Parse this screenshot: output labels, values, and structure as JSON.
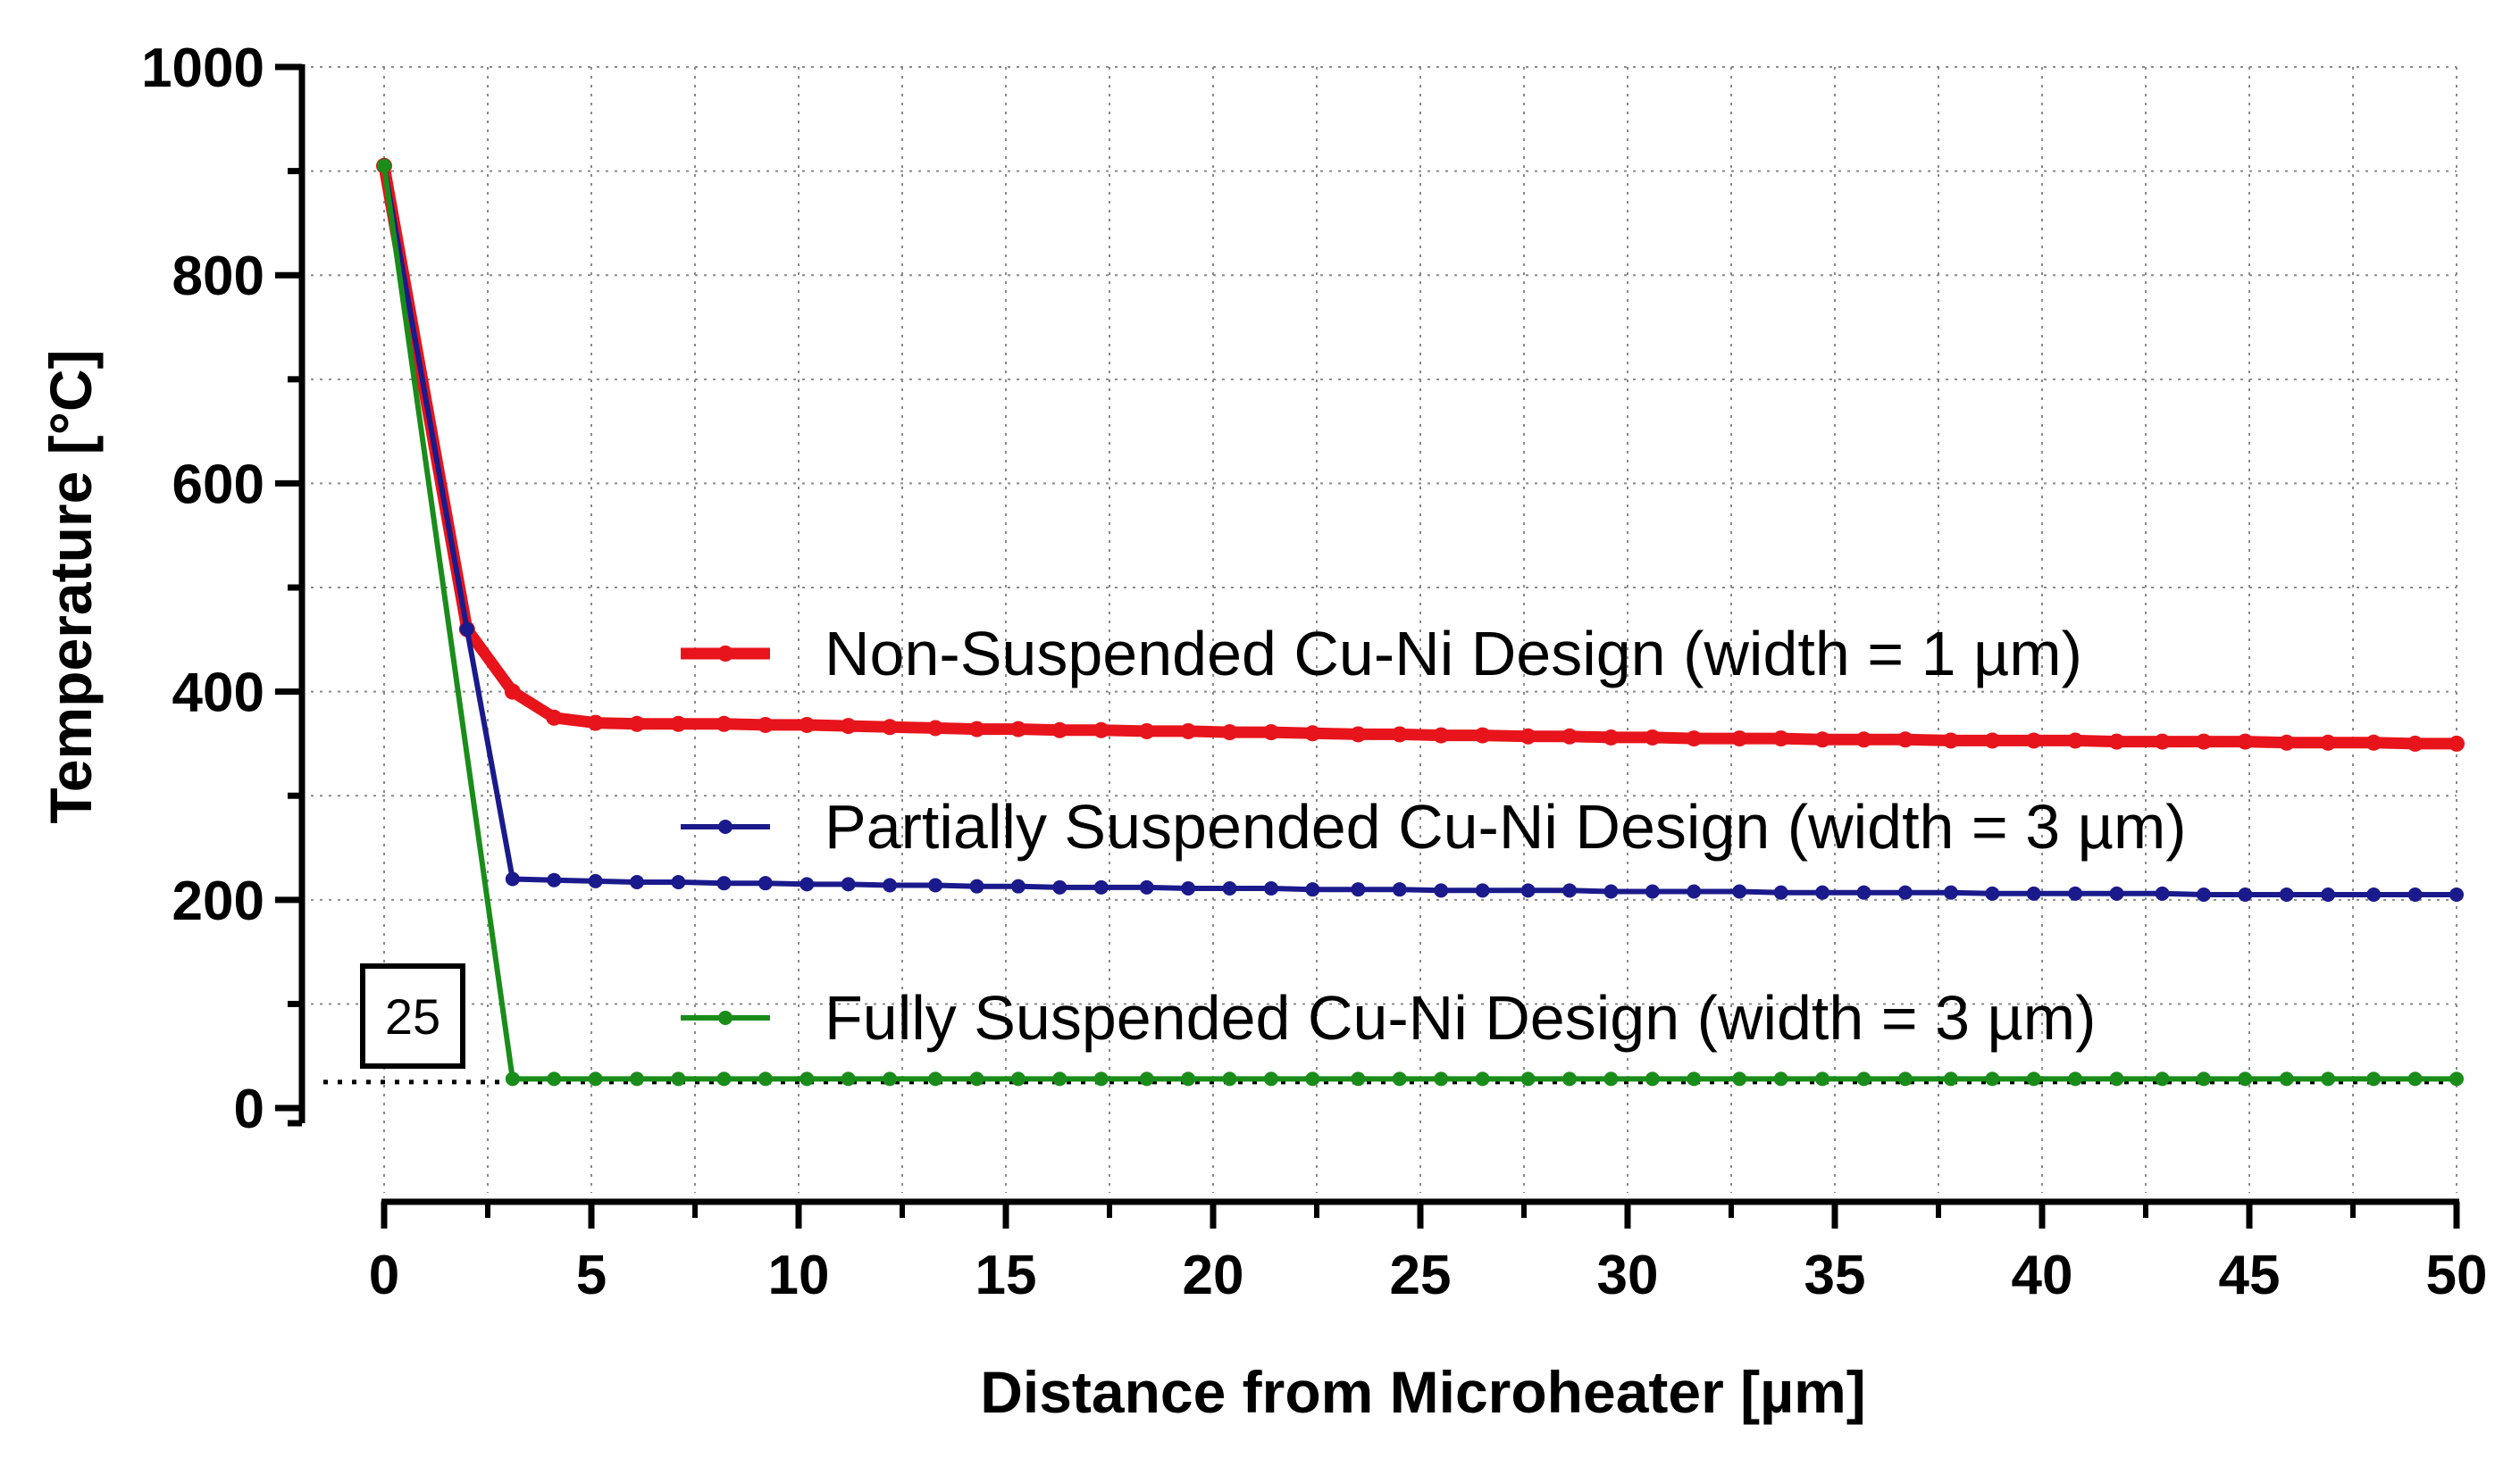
{
  "chart_data": {
    "type": "line",
    "xlabel": "Distance from Microheater [µm]",
    "ylabel": "Temperature [°C]",
    "xlim": [
      0,
      50
    ],
    "ylim": [
      -90,
      1000
    ],
    "xticks": [
      0,
      5,
      10,
      15,
      20,
      25,
      30,
      35,
      40,
      45,
      50
    ],
    "yticks": [
      0,
      200,
      400,
      600,
      800,
      1000
    ],
    "grid": true,
    "legend_position": "center-right",
    "reference_line": {
      "y": 25,
      "label": "25",
      "style": "dotted"
    },
    "series": [
      {
        "name": "Non-Suspended Cu-Ni Design (width = 1 µm)",
        "color": "#e8141b",
        "x": [
          0,
          2,
          3.1,
          4.1,
          5.1,
          6.1,
          7.1,
          8.2,
          9.2,
          10.2,
          11.2,
          12.2,
          13.3,
          14.3,
          15.3,
          16.3,
          17.3,
          18.4,
          19.4,
          20.4,
          21.4,
          22.4,
          23.5,
          24.5,
          25.5,
          26.5,
          27.6,
          28.6,
          29.6,
          30.6,
          31.6,
          32.7,
          33.7,
          34.7,
          35.7,
          36.7,
          37.8,
          38.8,
          39.8,
          40.8,
          41.8,
          42.9,
          43.9,
          44.9,
          45.9,
          46.9,
          48,
          49,
          50
        ],
        "y": [
          905,
          460,
          400,
          375,
          370,
          369,
          369,
          369,
          368,
          368,
          367,
          366,
          365,
          364,
          364,
          363,
          363,
          362,
          362,
          361,
          361,
          360,
          359,
          359,
          358,
          358,
          357,
          357,
          356,
          356,
          355,
          355,
          355,
          354,
          354,
          354,
          353,
          353,
          353,
          353,
          352,
          352,
          352,
          352,
          351,
          351,
          351,
          350,
          350
        ]
      },
      {
        "name": "Partially Suspended Cu-Ni Design (width = 3 µm)",
        "color": "#1a1a8c",
        "x": [
          0,
          2,
          3.1,
          4.1,
          5.1,
          6.1,
          7.1,
          8.2,
          9.2,
          10.2,
          11.2,
          12.2,
          13.3,
          14.3,
          15.3,
          16.3,
          17.3,
          18.4,
          19.4,
          20.4,
          21.4,
          22.4,
          23.5,
          24.5,
          25.5,
          26.5,
          27.6,
          28.6,
          29.6,
          30.6,
          31.6,
          32.7,
          33.7,
          34.7,
          35.7,
          36.7,
          37.8,
          38.8,
          39.8,
          40.8,
          41.8,
          42.9,
          43.9,
          44.9,
          45.9,
          46.9,
          48,
          49,
          50
        ],
        "y": [
          905,
          460,
          220,
          219,
          218,
          217,
          217,
          216,
          216,
          215,
          215,
          214,
          214,
          213,
          213,
          212,
          212,
          212,
          211,
          211,
          211,
          210,
          210,
          210,
          209,
          209,
          209,
          209,
          208,
          208,
          208,
          208,
          207,
          207,
          207,
          207,
          207,
          206,
          206,
          206,
          206,
          206,
          205,
          205,
          205,
          205,
          205,
          205,
          205
        ]
      },
      {
        "name": "Fully Suspended Cu-Ni Design (width = 3 µm)",
        "color": "#1a8c1a",
        "x": [
          0,
          3.1,
          4.1,
          5.1,
          6.1,
          7.1,
          8.2,
          9.2,
          10.2,
          11.2,
          12.2,
          13.3,
          14.3,
          15.3,
          16.3,
          17.3,
          18.4,
          19.4,
          20.4,
          21.4,
          22.4,
          23.5,
          24.5,
          25.5,
          26.5,
          27.6,
          28.6,
          29.6,
          30.6,
          31.6,
          32.7,
          33.7,
          34.7,
          35.7,
          36.7,
          37.8,
          38.8,
          39.8,
          40.8,
          41.8,
          42.9,
          43.9,
          44.9,
          45.9,
          46.9,
          48,
          49,
          50
        ],
        "y": [
          905,
          28,
          28,
          28,
          28,
          28,
          28,
          28,
          28,
          28,
          28,
          28,
          28,
          28,
          28,
          28,
          28,
          28,
          28,
          28,
          28,
          28,
          28,
          28,
          28,
          28,
          28,
          28,
          28,
          28,
          28,
          28,
          28,
          28,
          28,
          28,
          28,
          28,
          28,
          28,
          28,
          28,
          28,
          28,
          28,
          28,
          28,
          28
        ]
      }
    ]
  }
}
